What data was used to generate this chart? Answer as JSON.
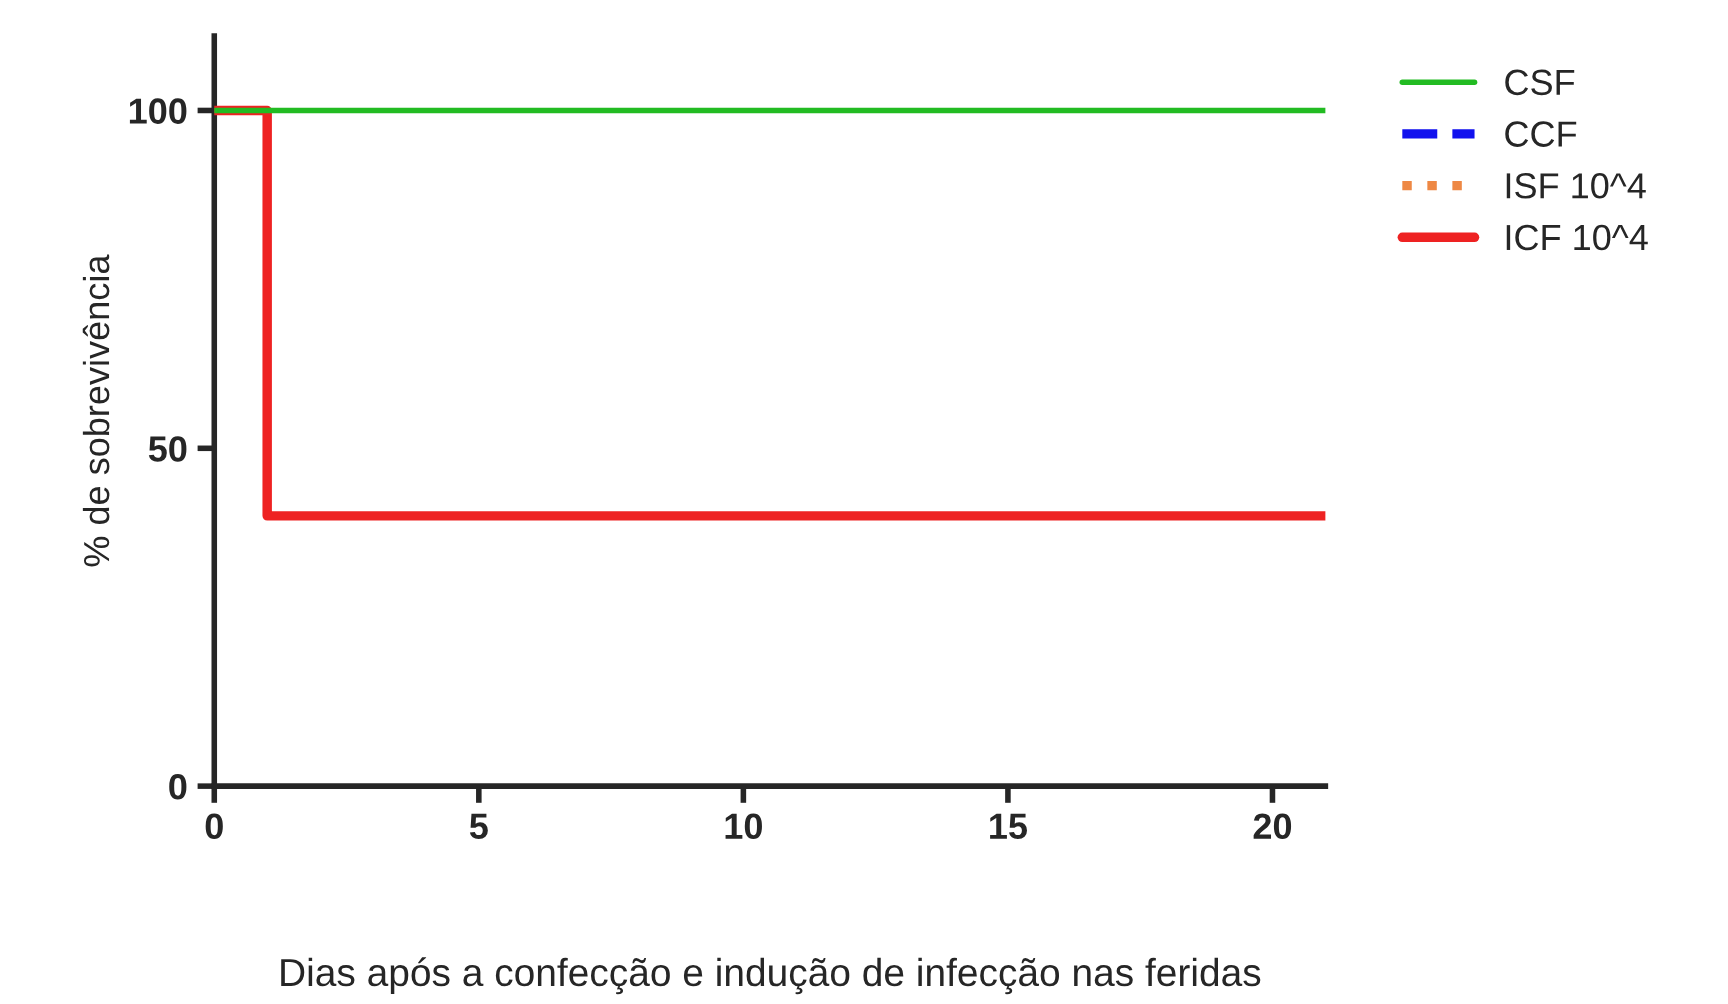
{
  "chart_data": {
    "type": "step",
    "xlabel": "Dias após a confecção e indução de infecção nas feridas",
    "ylabel": "% de sobrevivência",
    "x": [
      0,
      1,
      21
    ],
    "xlim": [
      0,
      21
    ],
    "xticks": [
      0,
      5,
      10,
      15,
      20
    ],
    "ylim": [
      0,
      111
    ],
    "yticks": [
      0,
      50,
      100
    ],
    "grid": false,
    "legend": "top right",
    "marker": "none",
    "series": [
      {
        "name": "CSF",
        "color": "#22bb22",
        "line_style": "solid",
        "values": [
          100,
          100,
          100
        ]
      },
      {
        "name": "CCF",
        "color": "#1111ee",
        "line_style": "dashed",
        "values": [
          null,
          null,
          null
        ]
      },
      {
        "name": "ISF 10^4",
        "color": "#ee8844",
        "line_style": "dotted",
        "values": [
          null,
          null,
          null
        ]
      },
      {
        "name": "ICF 10^4",
        "color": "#ee2222",
        "line_style": "solid",
        "values": [
          100,
          40,
          40
        ]
      }
    ]
  }
}
